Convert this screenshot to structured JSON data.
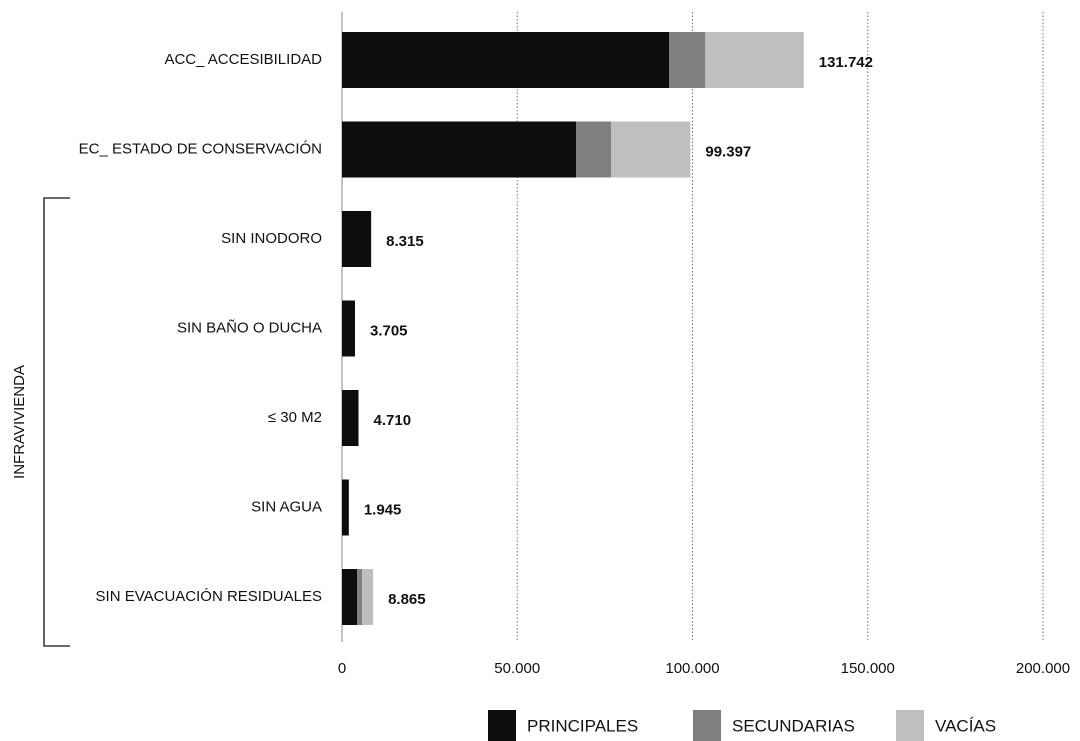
{
  "chart_data": {
    "type": "stacked-barh",
    "categories": [
      "ACC_ ACCESIBILIDAD",
      "EC_ ESTADO DE CONSERVACIÓN",
      "SIN INODORO",
      "SIN BAÑO O DUCHA",
      "≤ 30 M2",
      "SIN AGUA",
      "SIN EVACUACIÓN RESIDUALES"
    ],
    "series": [
      {
        "name": "PRINCIPALES",
        "color": "#0d0d0d",
        "values": [
          93295,
          66762,
          8315,
          3705,
          4710,
          1945,
          4280
        ]
      },
      {
        "name": "SECUNDARIAS",
        "color": "#7f7f7f",
        "values": [
          10271,
          9986,
          0,
          0,
          0,
          0,
          1430
        ]
      },
      {
        "name": "VACÍAS",
        "color": "#bfbfbf",
        "values": [
          28176,
          22649,
          0,
          0,
          0,
          0,
          3155
        ]
      }
    ],
    "totals": [
      131742,
      99397,
      8315,
      3705,
      4710,
      1945,
      8865
    ],
    "value_labels": [
      "131.742",
      "99.397",
      "8.315",
      "3.705",
      "4.710",
      "1.945",
      "8.865"
    ],
    "xlim": [
      0,
      200000
    ],
    "xticks": [
      0,
      {
        "value": 50000,
        "label": "50.000"
      },
      {
        "value": 100000,
        "label": "100.000"
      },
      {
        "value": 150000,
        "label": "150.000"
      },
      {
        "value": 200000,
        "label": "200.000"
      }
    ],
    "grid": true,
    "annotation": "INFRAVIVIENDA",
    "legend": "bottom"
  }
}
